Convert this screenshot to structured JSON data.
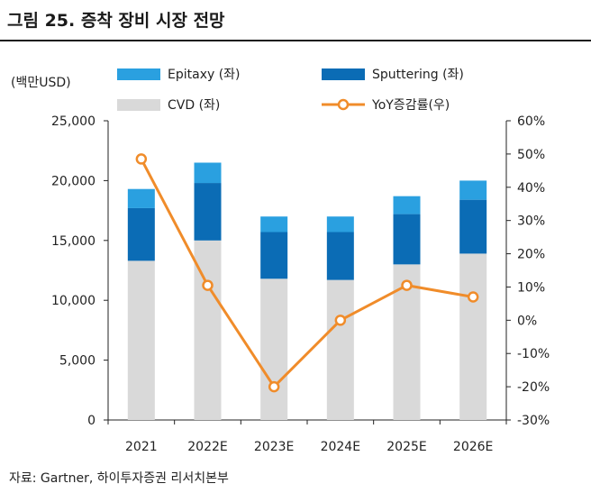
{
  "title": "그림 25. 증착 장비 시장 전망",
  "source": "자료: Gartner, 하이투자증권 리서치본부",
  "chart_data": {
    "type": "bar",
    "stacked": true,
    "categories": [
      "2021",
      "2022E",
      "2023E",
      "2024E",
      "2025E",
      "2026E"
    ],
    "y_left": {
      "label": "(백만USD)",
      "min": 0,
      "max": 25000,
      "ticks": [
        "0",
        "5,000",
        "10,000",
        "15,000",
        "20,000",
        "25,000"
      ],
      "tick_values": [
        0,
        5000,
        10000,
        15000,
        20000,
        25000
      ]
    },
    "y_right": {
      "min": -30,
      "max": 60,
      "ticks": [
        "-30%",
        "-20%",
        "-10%",
        "0%",
        "10%",
        "20%",
        "30%",
        "40%",
        "50%",
        "60%"
      ],
      "tick_values": [
        -30,
        -20,
        -10,
        0,
        10,
        20,
        30,
        40,
        50,
        60
      ]
    },
    "series": [
      {
        "name": "CVD (좌)",
        "type": "bar",
        "axis": "left",
        "color": "#d9d9d9",
        "values": [
          13300,
          15000,
          11800,
          11700,
          13000,
          13900
        ]
      },
      {
        "name": "Sputtering (좌)",
        "type": "bar",
        "axis": "left",
        "color": "#0b6cb5",
        "values": [
          4400,
          4800,
          3900,
          4000,
          4200,
          4500
        ]
      },
      {
        "name": "Epitaxy (좌)",
        "type": "bar",
        "axis": "left",
        "color": "#2aa0e0",
        "values": [
          1600,
          1700,
          1300,
          1300,
          1500,
          1600
        ]
      },
      {
        "name": "YoY증감률(우)",
        "type": "line",
        "axis": "right",
        "color": "#f08c2a",
        "values": [
          48.5,
          10.5,
          -20,
          0,
          10.5,
          7
        ]
      }
    ],
    "legend": [
      {
        "label": "Epitaxy (좌)",
        "kind": "bar",
        "color": "#2aa0e0"
      },
      {
        "label": "Sputtering (좌)",
        "kind": "bar",
        "color": "#0b6cb5"
      },
      {
        "label": "CVD (좌)",
        "kind": "bar",
        "color": "#d9d9d9"
      },
      {
        "label": "YoY증감률(우)",
        "kind": "line",
        "color": "#f08c2a"
      }
    ],
    "legend_position": "top"
  }
}
